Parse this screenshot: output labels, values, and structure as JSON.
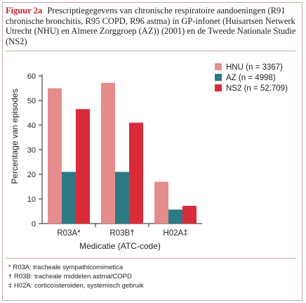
{
  "caption": {
    "label": "Figuur 2a",
    "text": "Prescriptiegegevens van chronische respiratoire aandoeningen (R91 chronische bronchitis, R95 COPD, R96 astma) in GP-infonet (Huisartsen Netwerk Utrecht (NHU) en Almere Zorggroep (AZ)) (2001) en de Tweede Nationale Studie (NS2)"
  },
  "chart_data": {
    "type": "bar",
    "categories": [
      "R03A*",
      "R03B†",
      "H02A‡"
    ],
    "series": [
      {
        "name": "HNU (n = 3367)",
        "values": [
          55,
          57.2,
          17
        ],
        "color": "#e58c8c"
      },
      {
        "name": "AZ (n = 4998)",
        "values": [
          21,
          21,
          5.7
        ],
        "color": "#2e7a82"
      },
      {
        "name": "NS2 (n = 52.709)",
        "values": [
          46.5,
          41,
          7.2
        ],
        "color": "#d92b3a"
      }
    ],
    "xlabel": "Medicatie (ATC-code)",
    "ylabel": "Percentage van episodes",
    "ylim": [
      0,
      60
    ],
    "yticks": [
      0,
      10,
      20,
      30,
      40,
      50,
      60
    ],
    "grid": false,
    "legend_position": "top-right"
  },
  "footnotes": [
    "* R03A: tracheale sympathicomimetica",
    "† R03B: tracheale middelen astma/COPD",
    "‡ H02A: corticoïsteroiden, systemisch gebruik"
  ]
}
